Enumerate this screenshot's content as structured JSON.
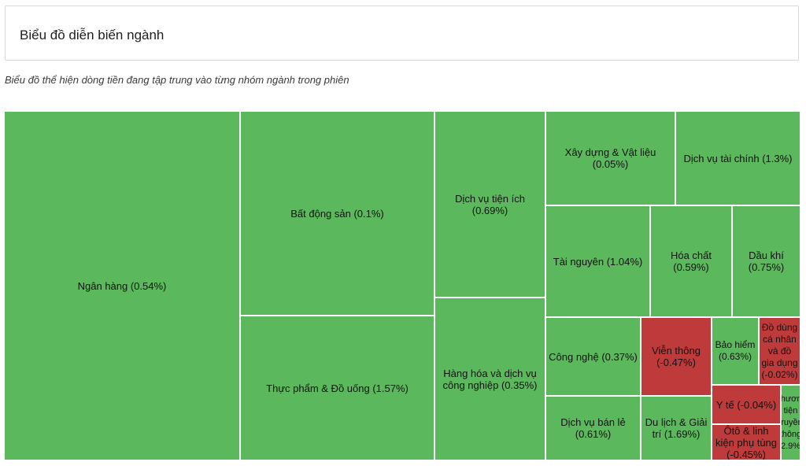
{
  "header": {
    "title": "Biểu đồ diễn biến ngành"
  },
  "subtitle": "Biểu đồ thể hiện dòng tiền đang tập trung vào từng nhóm ngành trong phiên",
  "colors": {
    "positive": "#5cb85c",
    "negative": "#bf3a3a"
  },
  "chart_data": {
    "type": "treemap",
    "title": "",
    "cells": [
      {
        "name": "Ngân hàng",
        "change_pct": 0.54
      },
      {
        "name": "Bất động sản",
        "change_pct": 0.1
      },
      {
        "name": "Thực phẩm & Đồ uống",
        "change_pct": 1.57
      },
      {
        "name": "Dịch vụ tiện ích",
        "change_pct": 0.69
      },
      {
        "name": "Hàng hóa và dịch vụ công nghiệp",
        "change_pct": 0.35
      },
      {
        "name": "Xây dựng & Vật liệu",
        "change_pct": 0.05
      },
      {
        "name": "Dịch vụ tài chính",
        "change_pct": 1.3
      },
      {
        "name": "Tài nguyên",
        "change_pct": 1.04
      },
      {
        "name": "Hóa chất",
        "change_pct": 0.59
      },
      {
        "name": "Dầu khí",
        "change_pct": 0.75
      },
      {
        "name": "Công nghệ",
        "change_pct": 0.37
      },
      {
        "name": "Viễn thông",
        "change_pct": -0.47
      },
      {
        "name": "Bảo hiểm",
        "change_pct": 0.63
      },
      {
        "name": "Đồ dùng cá nhân và đồ gia dụng",
        "change_pct": -0.02
      },
      {
        "name": "Y tế",
        "change_pct": -0.04
      },
      {
        "name": "Phương tiện truyền thông",
        "change_pct": 2.9
      },
      {
        "name": "Dịch vụ bán lẻ",
        "change_pct": 0.61
      },
      {
        "name": "Du lịch & Giải trí",
        "change_pct": 1.69
      },
      {
        "name": "Ôtô & linh kiện phụ tùng",
        "change_pct": -0.45
      }
    ]
  }
}
